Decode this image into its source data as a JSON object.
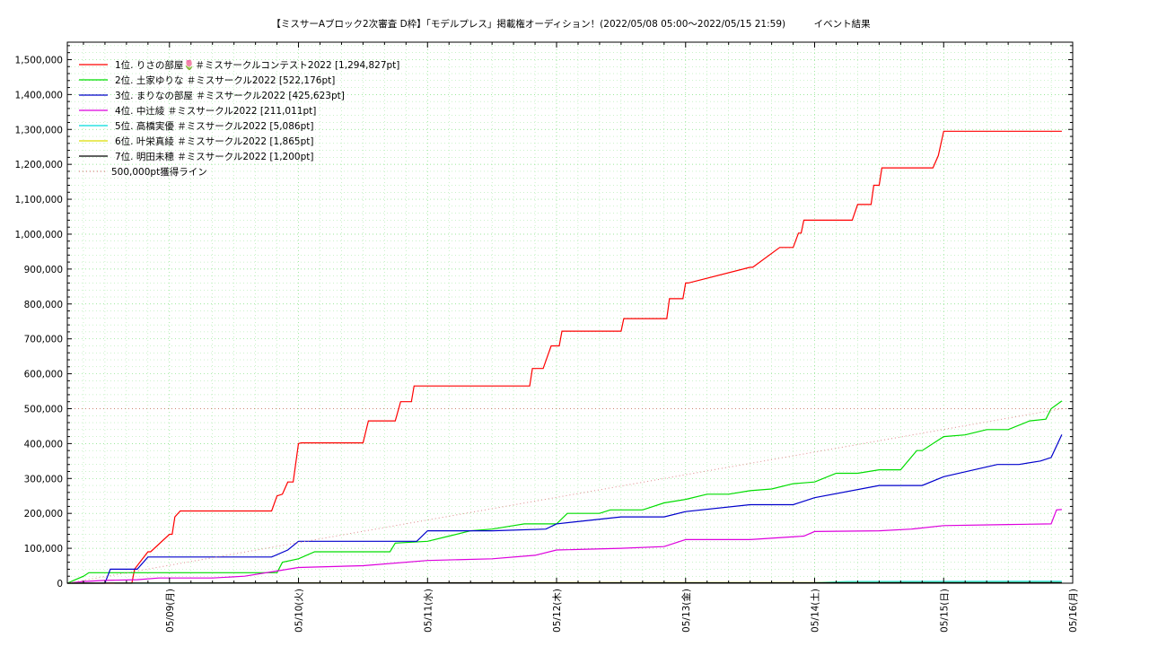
{
  "chart_data": {
    "type": "line",
    "title": "【ミスサーAブロック2次審査 D枠】「モデルプレス」掲載権オーディション！(2022/05/08 05:00〜2022/05/15 21:59)　　　イベント結果",
    "xlabel": "",
    "ylabel": "",
    "x_range": [
      "2022-05-08 05:00",
      "2022-05-16 00:00"
    ],
    "ylim": [
      0,
      1550000
    ],
    "y_ticks": [
      0,
      100000,
      200000,
      300000,
      400000,
      500000,
      600000,
      700000,
      800000,
      900000,
      1000000,
      1100000,
      1200000,
      1300000,
      1400000,
      1500000
    ],
    "y_tick_labels": [
      "0",
      "100,000",
      "200,000",
      "300,000",
      "400,000",
      "500,000",
      "600,000",
      "700,000",
      "800,000",
      "900,000",
      "1,000,000",
      "1,100,000",
      "1,200,000",
      "1,300,000",
      "1,400,000",
      "1,500,000"
    ],
    "x_ticks": [
      "2022-05-09 00:00",
      "2022-05-10 00:00",
      "2022-05-11 00:00",
      "2022-05-12 00:00",
      "2022-05-13 00:00",
      "2022-05-14 00:00",
      "2022-05-15 00:00",
      "2022-05-16 00:00"
    ],
    "x_tick_labels": [
      "05/09(月)",
      "05/10(火)",
      "05/11(水)",
      "05/12(木)",
      "05/13(金)",
      "05/14(土)",
      "05/15(日)",
      "05/16(月)"
    ],
    "grid": true,
    "legend_position": "top-left",
    "series": [
      {
        "name": "1位. りさの部屋🌷＃ミスサークルコンテスト2022 [1,294,827pt]",
        "color": "#ff0000",
        "x": [
          "2022-05-08 05:00",
          "2022-05-08 17:00",
          "2022-05-08 17:30",
          "2022-05-08 20:00",
          "2022-05-08 20:30",
          "2022-05-09 00:00",
          "2022-05-09 00:30",
          "2022-05-09 01:00",
          "2022-05-09 02:00",
          "2022-05-09 19:00",
          "2022-05-09 20:00",
          "2022-05-09 21:00",
          "2022-05-09 22:00",
          "2022-05-09 23:00",
          "2022-05-10 00:00",
          "2022-05-10 00:30",
          "2022-05-10 12:00",
          "2022-05-10 13:00",
          "2022-05-10 18:00",
          "2022-05-10 19:00",
          "2022-05-10 21:00",
          "2022-05-10 21:30",
          "2022-05-11 19:00",
          "2022-05-11 19:30",
          "2022-05-11 21:30",
          "2022-05-11 23:00",
          "2022-05-12 00:30",
          "2022-05-12 01:00",
          "2022-05-12 12:00",
          "2022-05-12 12:30",
          "2022-05-12 20:30",
          "2022-05-12 21:00",
          "2022-05-12 23:30",
          "2022-05-13 00:00",
          "2022-05-13 00:30",
          "2022-05-13 12:00",
          "2022-05-13 12:30",
          "2022-05-13 17:30",
          "2022-05-13 18:00",
          "2022-05-13 20:00",
          "2022-05-13 21:00",
          "2022-05-13 21:30",
          "2022-05-13 22:00",
          "2022-05-14 07:00",
          "2022-05-14 08:00",
          "2022-05-14 10:30",
          "2022-05-14 11:00",
          "2022-05-14 12:00",
          "2022-05-14 12:30",
          "2022-05-14 22:00",
          "2022-05-14 23:00",
          "2022-05-15 00:00",
          "2022-05-15 00:30",
          "2022-05-15 01:00",
          "2022-05-15 11:30",
          "2022-05-15 12:30",
          "2022-05-15 17:30",
          "2022-05-15 18:30",
          "2022-05-15 20:00",
          "2022-05-15 21:00",
          "2022-05-15 21:59"
        ],
        "values": [
          0,
          0,
          40000,
          90000,
          90000,
          140000,
          140000,
          190000,
          207000,
          207000,
          250000,
          255000,
          290000,
          290000,
          400000,
          402000,
          402000,
          465000,
          465000,
          520000,
          520000,
          565000,
          565000,
          615000,
          615000,
          680000,
          680000,
          722000,
          722000,
          758000,
          758000,
          815000,
          815000,
          860000,
          860000,
          905000,
          905000,
          962000,
          962000,
          962000,
          1003000,
          1003000,
          1040000,
          1040000,
          1085000,
          1085000,
          1140000,
          1140000,
          1190000,
          1190000,
          1225000,
          1294827,
          1294827,
          1294827,
          1294827,
          1294827,
          1294827,
          1294827,
          1294827,
          1294827,
          1294827
        ]
      },
      {
        "name": "2位. 土家ゆりな ＃ミスサークル2022 [522,176pt]",
        "color": "#00dd00",
        "x": [
          "2022-05-08 05:00",
          "2022-05-08 06:30",
          "2022-05-08 08:00",
          "2022-05-08 09:00",
          "2022-05-09 20:00",
          "2022-05-09 21:00",
          "2022-05-10 00:00",
          "2022-05-10 03:00",
          "2022-05-10 17:00",
          "2022-05-10 18:00",
          "2022-05-11 00:00",
          "2022-05-11 04:00",
          "2022-05-11 08:00",
          "2022-05-11 12:00",
          "2022-05-11 16:00",
          "2022-05-11 18:00",
          "2022-05-12 00:00",
          "2022-05-12 02:00",
          "2022-05-12 08:00",
          "2022-05-12 10:00",
          "2022-05-12 16:00",
          "2022-05-12 20:00",
          "2022-05-13 00:00",
          "2022-05-13 04:00",
          "2022-05-13 08:00",
          "2022-05-13 12:00",
          "2022-05-13 16:00",
          "2022-05-13 20:00",
          "2022-05-14 00:00",
          "2022-05-14 04:00",
          "2022-05-14 08:00",
          "2022-05-14 12:00",
          "2022-05-14 16:00",
          "2022-05-14 19:00",
          "2022-05-14 20:00",
          "2022-05-15 00:00",
          "2022-05-15 04:00",
          "2022-05-15 08:00",
          "2022-05-15 12:00",
          "2022-05-15 16:00",
          "2022-05-15 19:00",
          "2022-05-15 20:00",
          "2022-05-15 21:59"
        ],
        "values": [
          0,
          10000,
          20000,
          30000,
          30000,
          60000,
          70000,
          90000,
          90000,
          115000,
          120000,
          135000,
          150000,
          155000,
          165000,
          170000,
          170000,
          200000,
          200000,
          210000,
          210000,
          230000,
          240000,
          255000,
          255000,
          265000,
          270000,
          285000,
          290000,
          315000,
          315000,
          325000,
          325000,
          380000,
          380000,
          420000,
          425000,
          440000,
          440000,
          465000,
          470000,
          500000,
          522176
        ]
      },
      {
        "name": "3位. まりなの部屋 ＃ミスサークル2022 [425,623pt]",
        "color": "#0000cc",
        "x": [
          "2022-05-08 05:00",
          "2022-05-08 12:00",
          "2022-05-08 13:00",
          "2022-05-08 18:00",
          "2022-05-08 20:00",
          "2022-05-08 22:00",
          "2022-05-09 15:00",
          "2022-05-09 19:00",
          "2022-05-09 22:00",
          "2022-05-10 00:00",
          "2022-05-10 12:00",
          "2022-05-10 22:00",
          "2022-05-11 00:00",
          "2022-05-11 12:00",
          "2022-05-11 22:00",
          "2022-05-12 00:00",
          "2022-05-12 12:00",
          "2022-05-12 20:00",
          "2022-05-13 00:00",
          "2022-05-13 12:00",
          "2022-05-13 20:00",
          "2022-05-14 00:00",
          "2022-05-14 12:00",
          "2022-05-14 20:00",
          "2022-05-15 00:00",
          "2022-05-15 10:00",
          "2022-05-15 14:00",
          "2022-05-15 18:00",
          "2022-05-15 20:00",
          "2022-05-15 21:59"
        ],
        "values": [
          0,
          0,
          40000,
          40000,
          75000,
          75000,
          75000,
          75000,
          95000,
          120000,
          120000,
          120000,
          150000,
          150000,
          155000,
          170000,
          190000,
          190000,
          205000,
          225000,
          225000,
          245000,
          280000,
          280000,
          305000,
          340000,
          340000,
          350000,
          360000,
          425623
        ]
      },
      {
        "name": "4位. 中辻綾 ＃ミスサークル2022 [211,011pt]",
        "color": "#dd00dd",
        "x": [
          "2022-05-08 05:00",
          "2022-05-08 08:00",
          "2022-05-08 12:00",
          "2022-05-08 18:00",
          "2022-05-08 22:00",
          "2022-05-09 08:00",
          "2022-05-09 14:00",
          "2022-05-09 20:00",
          "2022-05-10 00:00",
          "2022-05-10 12:00",
          "2022-05-11 00:00",
          "2022-05-11 12:00",
          "2022-05-11 20:00",
          "2022-05-12 00:00",
          "2022-05-12 12:00",
          "2022-05-12 20:00",
          "2022-05-13 00:00",
          "2022-05-13 12:00",
          "2022-05-13 22:00",
          "2022-05-14 00:00",
          "2022-05-14 12:00",
          "2022-05-14 18:00",
          "2022-05-15 00:00",
          "2022-05-15 12:00",
          "2022-05-15 20:00",
          "2022-05-15 21:00",
          "2022-05-15 21:59"
        ],
        "values": [
          0,
          5000,
          8000,
          10000,
          15000,
          15000,
          20000,
          35000,
          45000,
          50000,
          65000,
          70000,
          80000,
          95000,
          100000,
          105000,
          125000,
          125000,
          135000,
          148000,
          150000,
          155000,
          165000,
          168000,
          170000,
          210000,
          211011
        ]
      },
      {
        "name": "5位. 高橋実優 ＃ミスサークル2022 [5,086pt]",
        "color": "#00dddd",
        "x": [
          "2022-05-08 05:00",
          "2022-05-14 00:00",
          "2022-05-14 06:00",
          "2022-05-15 21:59"
        ],
        "values": [
          0,
          1500,
          4500,
          5086
        ]
      },
      {
        "name": "6位. 叶栄真綾 ＃ミスサークル2022 [1,865pt]",
        "color": "#dddd00",
        "x": [
          "2022-05-08 05:00",
          "2022-05-10 00:00",
          "2022-05-12 00:00",
          "2022-05-15 21:59"
        ],
        "values": [
          0,
          800,
          1500,
          1865
        ]
      },
      {
        "name": "7位. 明田未穂 ＃ミスサークル2022 [1,200pt]",
        "color": "#000000",
        "x": [
          "2022-05-08 05:00",
          "2022-05-09 00:00",
          "2022-05-12 00:00",
          "2022-05-15 21:59"
        ],
        "values": [
          0,
          500,
          1000,
          1200
        ]
      },
      {
        "name": "500,000pt獲得ライン",
        "color": "#dd8888",
        "dotted": true,
        "x": [
          "2022-05-08 05:00",
          "2022-05-15 21:59"
        ],
        "values": [
          0,
          500000
        ]
      }
    ],
    "reference_lines": [
      500000
    ]
  }
}
